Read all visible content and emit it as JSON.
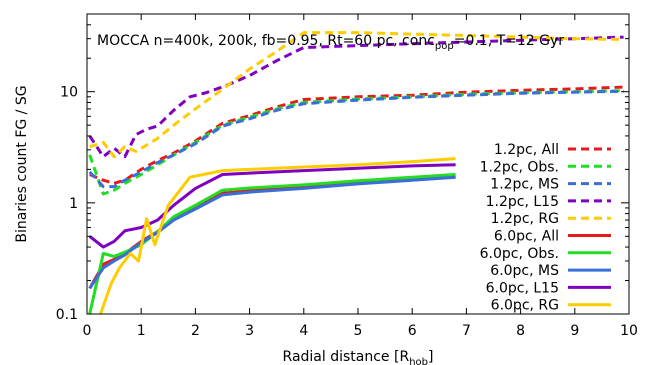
{
  "chart_data": {
    "type": "line",
    "title": "MOCCA n=400k, 200k, fb=0.95, Rt=60 pc, conc",
    "title_subscript": "pop",
    "title_suffix": "=0.1, T=12 Gyr",
    "xlabel": "Radial distance [R",
    "xlabel_subscript": "hob",
    "xlabel_suffix": "]",
    "ylabel": "Binaries count FG / SG",
    "xlim": [
      0,
      10
    ],
    "ylim": [
      0.1,
      50
    ],
    "yscale": "log",
    "x_ticks": [
      0,
      1,
      2,
      3,
      4,
      5,
      6,
      7,
      8,
      9,
      10
    ],
    "y_ticks": [
      {
        "value": 0.1,
        "label": "0.1"
      },
      {
        "value": 1,
        "label": "1"
      },
      {
        "value": 10,
        "label": "10"
      }
    ],
    "grid": false,
    "legend_position": "right",
    "series": [
      {
        "name": "1.2pc,  All",
        "color": "#e41a1c",
        "dash": true,
        "x": [
          0.05,
          0.3,
          0.5,
          0.7,
          1.0,
          1.3,
          1.6,
          2.0,
          2.5,
          3.0,
          3.5,
          4.0,
          5.0,
          6.0,
          7.0,
          8.0,
          9.0,
          9.9
        ],
        "y": [
          1.8,
          1.6,
          1.5,
          1.6,
          2.0,
          2.4,
          2.8,
          3.6,
          5.2,
          6.1,
          7.3,
          8.5,
          9.0,
          9.3,
          9.9,
          10.3,
          10.6,
          11.0
        ]
      },
      {
        "name": "1.2pc,  Obs.",
        "color": "#22dd22",
        "dash": true,
        "x": [
          0.05,
          0.3,
          0.5,
          0.7,
          1.0,
          1.3,
          1.6,
          2.0,
          2.5,
          3.0,
          3.5,
          4.0,
          5.0,
          6.0,
          7.0,
          8.0,
          9.0,
          9.9
        ],
        "y": [
          2.7,
          1.2,
          1.3,
          1.5,
          1.8,
          2.2,
          2.7,
          3.5,
          5.0,
          5.9,
          7.0,
          8.0,
          8.6,
          9.0,
          9.5,
          9.8,
          10.0,
          10.2
        ]
      },
      {
        "name": "1.2pc,  MS",
        "color": "#3a6fd8",
        "dash": true,
        "x": [
          0.05,
          0.3,
          0.5,
          0.7,
          1.0,
          1.3,
          1.6,
          2.0,
          2.5,
          3.0,
          3.5,
          4.0,
          5.0,
          6.0,
          7.0,
          8.0,
          9.0,
          9.9
        ],
        "y": [
          1.9,
          1.4,
          1.4,
          1.6,
          1.9,
          2.3,
          2.7,
          3.4,
          4.9,
          5.7,
          6.8,
          7.8,
          8.4,
          8.9,
          9.3,
          9.7,
          9.9,
          10.1
        ]
      },
      {
        "name": "1.2pc,  L15",
        "color": "#8000c0",
        "dash": true,
        "x": [
          0.05,
          0.3,
          0.5,
          0.7,
          0.9,
          1.1,
          1.3,
          1.6,
          1.9,
          2.2,
          2.6,
          3.0,
          3.5,
          4.0,
          5.0,
          6.0,
          7.0,
          8.0,
          9.0,
          9.9
        ],
        "y": [
          4.0,
          2.6,
          3.1,
          2.6,
          4.1,
          4.6,
          4.9,
          6.8,
          9.0,
          9.8,
          11.5,
          14.0,
          19.0,
          25.0,
          26.0,
          27.0,
          28.0,
          29.0,
          30.0,
          31.0
        ]
      },
      {
        "name": "1.2pc,  RG",
        "color": "#ffcc00",
        "dash": true,
        "x": [
          0.05,
          0.3,
          0.5,
          0.7,
          0.9,
          1.1,
          1.3,
          1.6,
          2.0,
          2.5,
          3.0,
          3.5,
          4.0,
          5.0,
          6.0,
          7.0,
          8.0,
          9.0,
          9.9
        ],
        "y": [
          3.2,
          3.5,
          2.6,
          3.2,
          2.9,
          3.3,
          3.8,
          5.0,
          7.0,
          10.5,
          16.0,
          23.0,
          34.0,
          34.0,
          33.0,
          32.0,
          31.0,
          30.0,
          29.5
        ]
      },
      {
        "name": "6.0pc,  All",
        "color": "#e41a1c",
        "dash": false,
        "x": [
          0.05,
          0.3,
          0.5,
          0.7,
          1.0,
          1.3,
          1.6,
          2.0,
          2.5,
          3.0,
          4.0,
          5.0,
          6.0,
          6.8
        ],
        "y": [
          0.17,
          0.28,
          0.31,
          0.35,
          0.45,
          0.55,
          0.72,
          0.9,
          1.22,
          1.28,
          1.38,
          1.5,
          1.62,
          1.72
        ]
      },
      {
        "name": "6.0pc,  Obs.",
        "color": "#22dd22",
        "dash": false,
        "x": [
          0.05,
          0.3,
          0.5,
          0.7,
          1.0,
          1.3,
          1.6,
          2.0,
          2.5,
          3.0,
          4.0,
          5.0,
          6.0,
          6.8
        ],
        "y": [
          0.1,
          0.35,
          0.33,
          0.36,
          0.42,
          0.55,
          0.75,
          0.95,
          1.3,
          1.36,
          1.45,
          1.58,
          1.7,
          1.8
        ]
      },
      {
        "name": "6.0pc,  MS",
        "color": "#3a6fd8",
        "dash": false,
        "x": [
          0.05,
          0.3,
          0.5,
          0.7,
          1.0,
          1.3,
          1.6,
          2.0,
          2.5,
          3.0,
          4.0,
          5.0,
          6.0,
          6.8
        ],
        "y": [
          0.17,
          0.26,
          0.3,
          0.34,
          0.44,
          0.54,
          0.7,
          0.88,
          1.18,
          1.25,
          1.35,
          1.48,
          1.6,
          1.7
        ]
      },
      {
        "name": "6.0pc,  L15",
        "color": "#8000c0",
        "dash": false,
        "x": [
          0.05,
          0.3,
          0.5,
          0.7,
          1.0,
          1.3,
          1.6,
          2.0,
          2.5,
          3.0,
          4.0,
          5.0,
          6.0,
          6.8
        ],
        "y": [
          0.5,
          0.4,
          0.45,
          0.56,
          0.6,
          0.7,
          0.95,
          1.35,
          1.8,
          1.85,
          1.95,
          2.05,
          2.15,
          2.2
        ]
      },
      {
        "name": "6.0pc,  RG",
        "color": "#ffcc00",
        "dash": false,
        "x": [
          0.25,
          0.45,
          0.6,
          0.8,
          0.95,
          1.1,
          1.25,
          1.5,
          1.9,
          2.5,
          3.0,
          4.0,
          5.0,
          6.0,
          6.8
        ],
        "y": [
          0.1,
          0.19,
          0.26,
          0.35,
          0.3,
          0.72,
          0.42,
          0.95,
          1.7,
          1.95,
          2.0,
          2.1,
          2.2,
          2.35,
          2.5
        ]
      }
    ]
  }
}
